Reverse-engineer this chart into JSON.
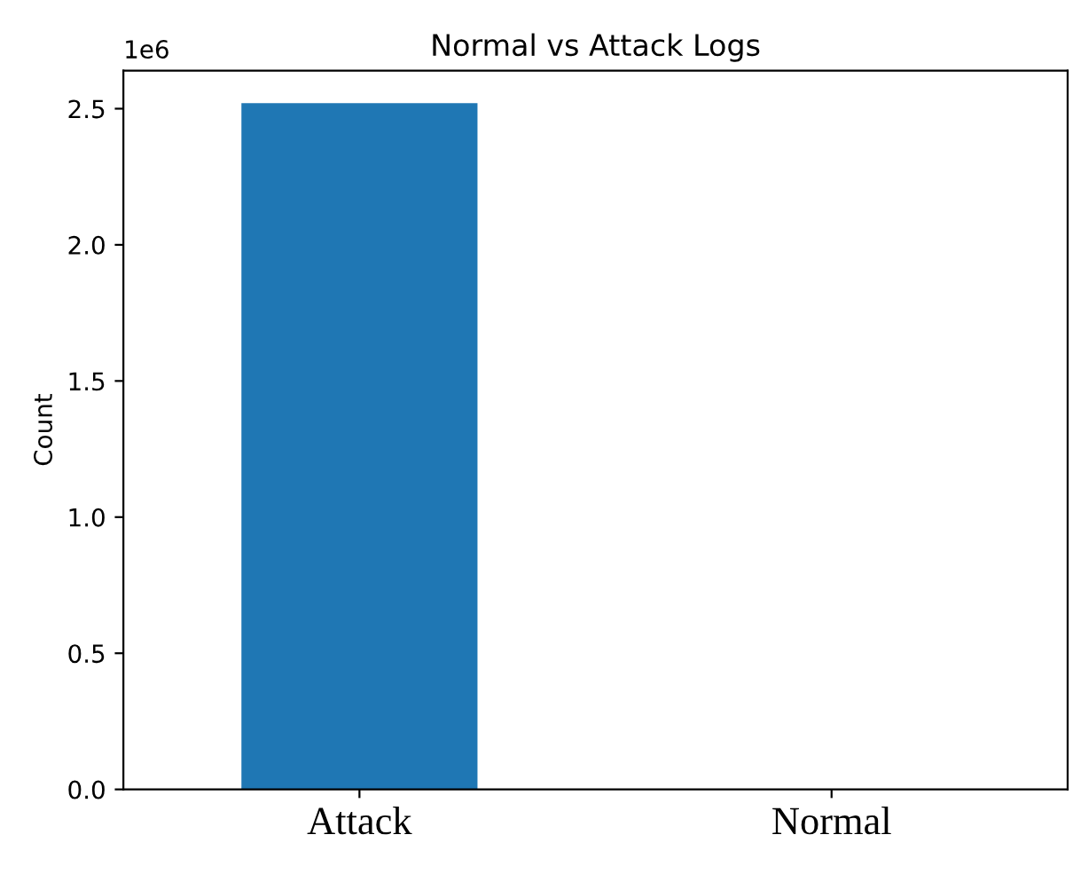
{
  "chart_data": {
    "type": "bar",
    "title": "Normal vs Attack Logs",
    "ylabel": "Count",
    "categories": [
      "Attack",
      "Normal"
    ],
    "values": [
      2.52,
      0
    ],
    "color": "#1f77b4",
    "ylim": [
      0,
      2.64
    ],
    "yticks": [
      {
        "value": 0,
        "label": "0.0"
      },
      0.5,
      {
        "value": 1,
        "label": "1.0"
      },
      1.5,
      {
        "value": 2,
        "label": "2.0"
      },
      2.5
    ],
    "annotations": [
      "1e6"
    ],
    "grid": false,
    "legend": false
  }
}
